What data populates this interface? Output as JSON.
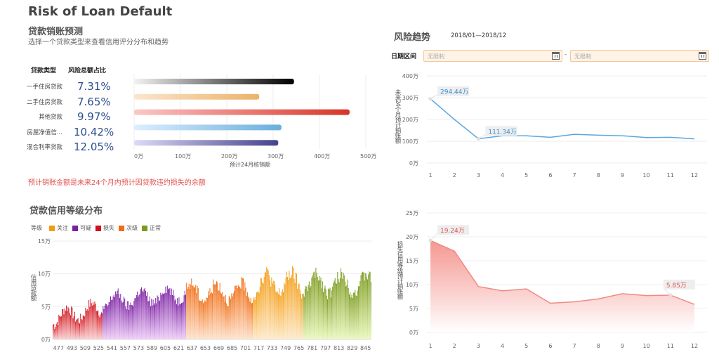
{
  "page": {
    "title": "Risk of Loan Default"
  },
  "writeoff_forecast": {
    "title": "贷款销账预测",
    "subtitle": "选择一个贷款类型来查看信用评分分布和趋势",
    "col_loan_type": "贷款类型",
    "col_risk_ratio": "风险总额占比",
    "note": "预计销账金额是未来24个月内预计因贷款违约损失的余额",
    "rows": [
      {
        "label": "一手住房贷款",
        "pct": "7.31%"
      },
      {
        "label": "二手住房贷款",
        "pct": "7.65%"
      },
      {
        "label": "其他贷款",
        "pct": "9.97%"
      },
      {
        "label": "房屋净值信...",
        "pct": "10.42%"
      },
      {
        "label": "混合利率贷款",
        "pct": "12.05%"
      }
    ]
  },
  "credit_distribution": {
    "title": "贷款信用等级分布",
    "legend_title": "等级",
    "legend": [
      {
        "label": "关注",
        "color": "#f39c12"
      },
      {
        "label": "可疑",
        "color": "#7b1fa2"
      },
      {
        "label": "损失",
        "color": "#d0101a"
      },
      {
        "label": "次级",
        "color": "#f06c12"
      },
      {
        "label": "正常",
        "color": "#7a9a1c"
      }
    ]
  },
  "risk_trend": {
    "title": "风险趋势",
    "period": "2018/01—2018/12",
    "date_range_label": "日期区间",
    "start_placeholder": "无限制",
    "end_placeholder": "无限制",
    "separator": "-"
  },
  "chart_data": [
    {
      "type": "bar",
      "orientation": "horizontal",
      "title": "",
      "categories": [
        "一手住房贷款",
        "二手住房贷款",
        "其他贷款",
        "房屋净值信...",
        "混合利率贷款"
      ],
      "values": [
        345,
        270,
        465,
        318,
        311
      ],
      "unit": "万",
      "xlabel": "预计24月核销额",
      "xlim": [
        0,
        500
      ],
      "xticks": [
        "0万",
        "100万",
        "200万",
        "300万",
        "400万",
        "500万"
      ],
      "grid": true,
      "colors": [
        [
          "#f2f2f2",
          "#000000"
        ],
        [
          "#fbe6cc",
          "#ebb26a"
        ],
        [
          "#fcc7c7",
          "#d83427"
        ],
        [
          "#dcefff",
          "#6aaedb"
        ],
        [
          "#dcdaf8",
          "#44428a"
        ]
      ]
    },
    {
      "type": "bar",
      "title": "",
      "ylabel": "信用贷款额",
      "ylim": [
        0,
        15
      ],
      "yticks": [
        "0万",
        "5万",
        "10万",
        "15万"
      ],
      "x_range": [
        470,
        851
      ],
      "xticks": [
        "477",
        "493",
        "509",
        "525",
        "541",
        "557",
        "573",
        "589",
        "605",
        "621",
        "637",
        "653",
        "669",
        "685",
        "701",
        "717",
        "733",
        "749",
        "765",
        "781",
        "797",
        "813",
        "829",
        "845"
      ],
      "grid": true,
      "legend_position": "top-left",
      "series": [
        {
          "name": "损失",
          "x_range": [
            470,
            529
          ],
          "approx_range_wan": [
            0.5,
            6.2
          ],
          "color": "#d0101a"
        },
        {
          "name": "可疑",
          "x_range": [
            530,
            629
          ],
          "approx_range_wan": [
            3,
            8.5
          ],
          "color": "#7b1fa2"
        },
        {
          "name": "次级",
          "x_range": [
            630,
            709
          ],
          "approx_range_wan": [
            4,
            10.5
          ],
          "color": "#f06c12"
        },
        {
          "name": "关注",
          "x_range": [
            710,
            769
          ],
          "approx_range_wan": [
            4.5,
            12.5
          ],
          "color": "#f39c12"
        },
        {
          "name": "正常",
          "x_range": [
            770,
            851
          ],
          "approx_range_wan": [
            5,
            12
          ],
          "color": "#7a9a1c"
        }
      ]
    },
    {
      "type": "line",
      "title": "",
      "x": [
        1,
        2,
        3,
        4,
        5,
        6,
        7,
        8,
        9,
        10,
        11,
        12
      ],
      "series": [
        {
          "name": "未来24个月预计销账额",
          "values": [
            294.44,
            200,
            111.34,
            125,
            125,
            118,
            132,
            128,
            125,
            117,
            118,
            111
          ],
          "color": "#5aa7de"
        }
      ],
      "annotations": [
        "294.44万",
        "111.34万"
      ],
      "ylabel": "未来24个月预计销账额",
      "ylim": [
        0,
        400
      ],
      "yticks": [
        "0万",
        "100万",
        "200万",
        "300万",
        "400万"
      ],
      "grid": true
    },
    {
      "type": "area",
      "title": "",
      "x": [
        1,
        2,
        3,
        4,
        5,
        6,
        7,
        8,
        9,
        10,
        11,
        12
      ],
      "series": [
        {
          "name": "损失信用等级预计销账额",
          "values": [
            19.24,
            17.0,
            9.6,
            8.7,
            9.1,
            6.1,
            6.4,
            7.0,
            8.1,
            7.7,
            7.8,
            5.85
          ],
          "color": "#f08a84"
        }
      ],
      "annotations": [
        "19.24万",
        "5.85万"
      ],
      "ylabel": "损失信用等级预计销账额",
      "ylim": [
        0,
        25
      ],
      "yticks": [
        "0万",
        "5万",
        "10万",
        "15万",
        "20万",
        "25万"
      ],
      "grid": true
    }
  ]
}
